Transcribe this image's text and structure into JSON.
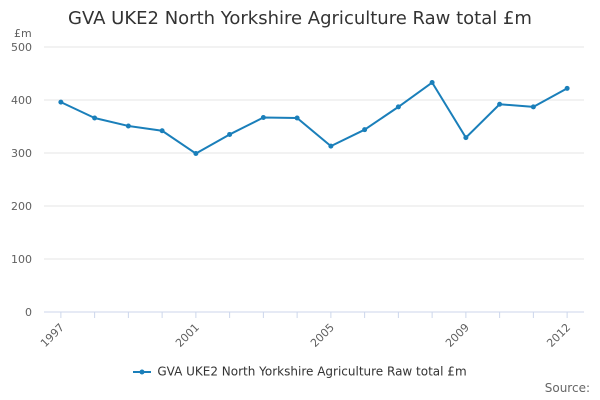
{
  "chart_data": {
    "type": "line",
    "title": "GVA UKE2 North Yorkshire Agriculture Raw total £m",
    "ylabel": "£m",
    "xlabel": "",
    "ylim": [
      0,
      500
    ],
    "yticks": [
      0,
      100,
      200,
      300,
      400,
      500
    ],
    "xtick_labels": [
      "1997",
      "2001",
      "2005",
      "2009",
      "2012"
    ],
    "x": [
      1997,
      1998,
      1999,
      2000,
      2001,
      2002,
      2003,
      2004,
      2005,
      2006,
      2007,
      2008,
      2009,
      2010,
      2011,
      2012
    ],
    "series": [
      {
        "name": "GVA UKE2 North Yorkshire Agriculture Raw total £m",
        "values": [
          396,
          366,
          351,
          342,
          299,
          335,
          367,
          366,
          313,
          344,
          387,
          433,
          329,
          392,
          387,
          422
        ],
        "color": "#1a7fba"
      }
    ],
    "grid": true,
    "legend": "bottom",
    "credits": "Source:"
  }
}
